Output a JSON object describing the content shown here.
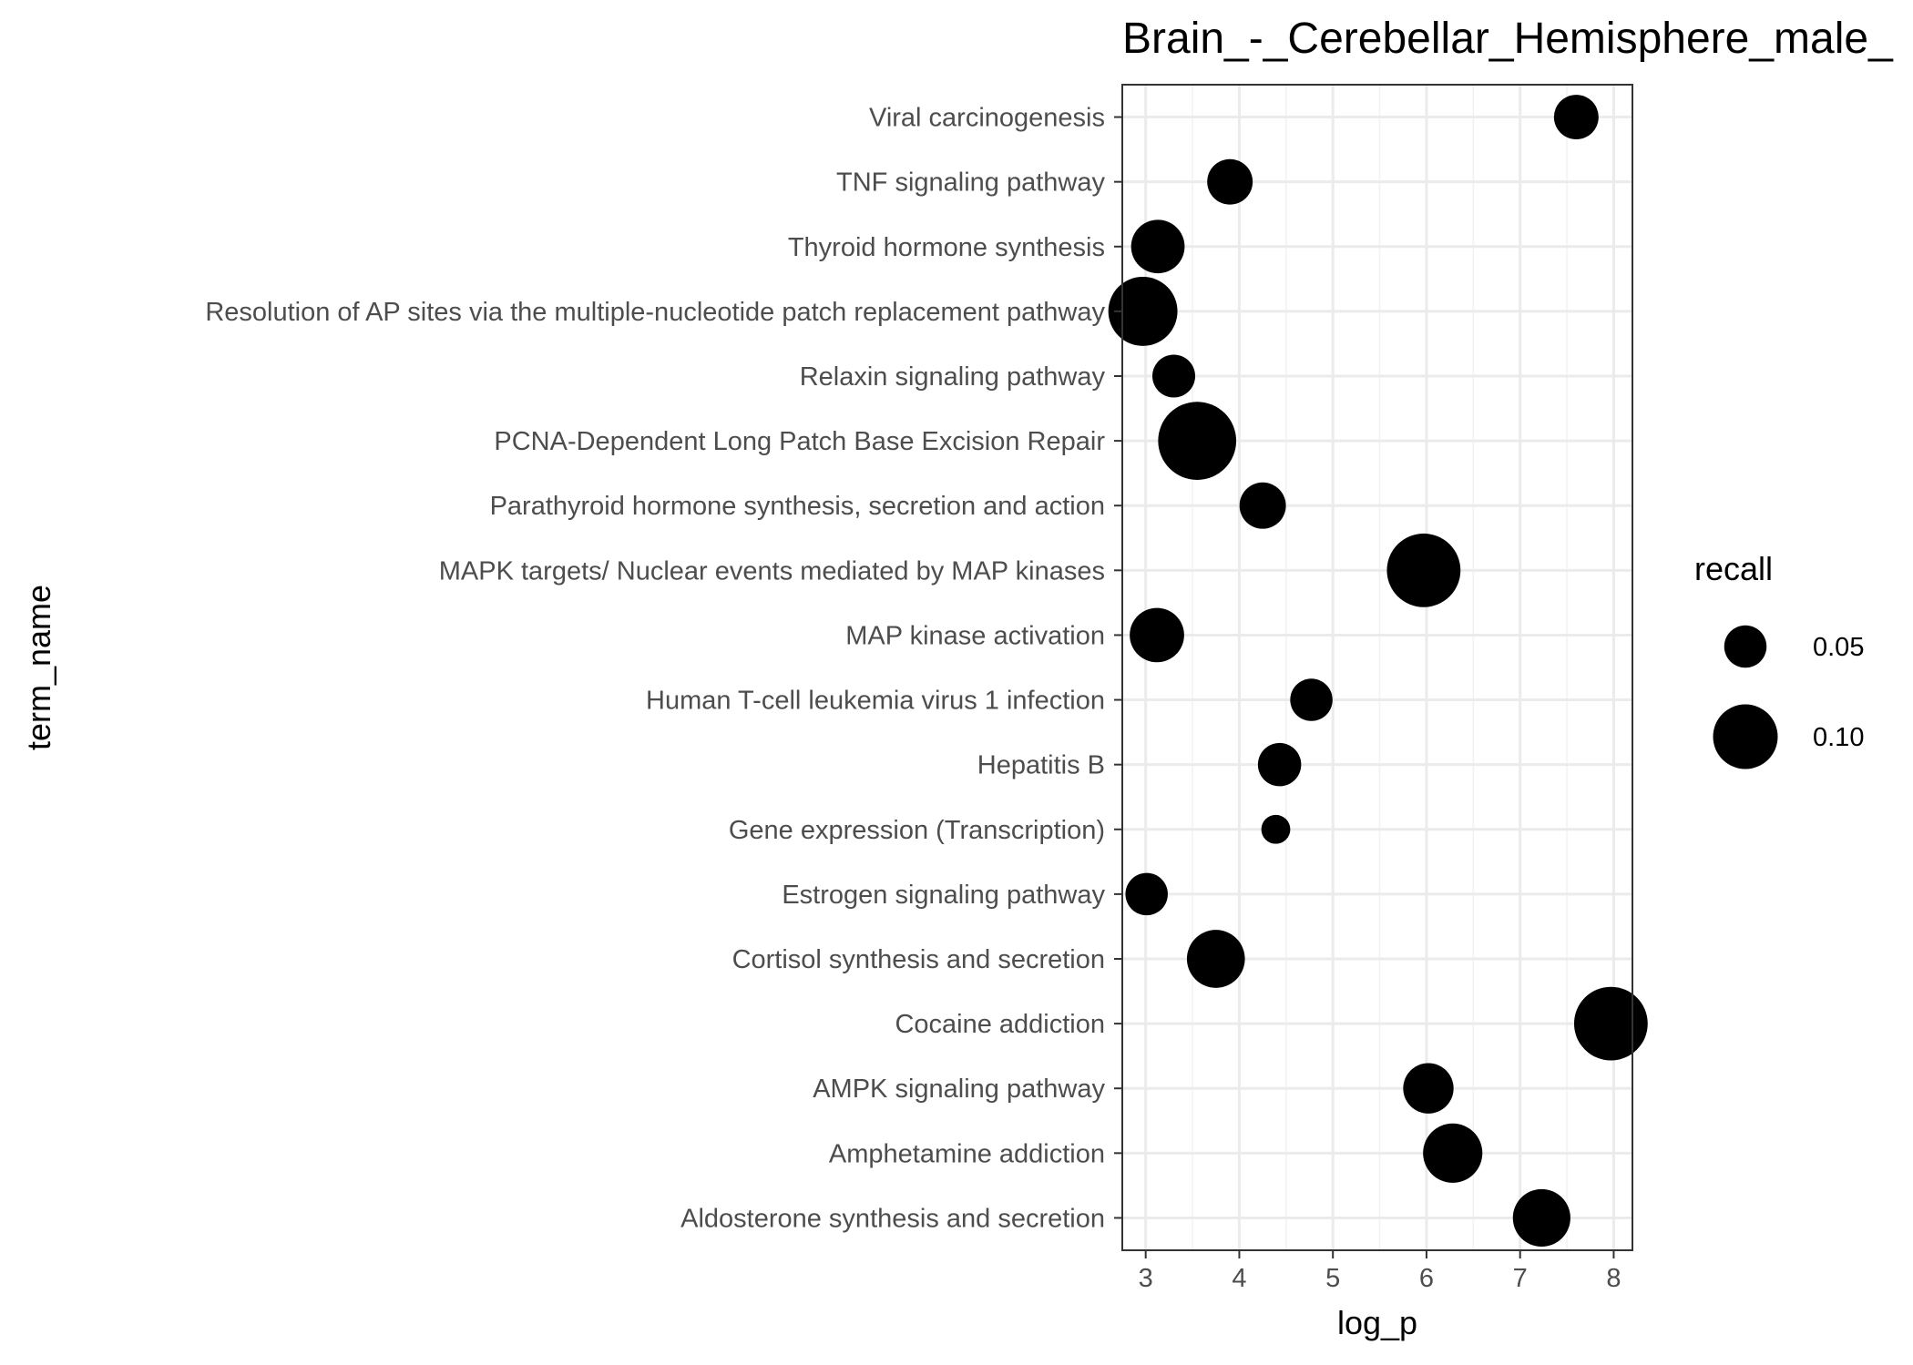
{
  "chart_data": {
    "type": "scatter",
    "title": "Brain_-_Cerebellar_Hemisphere_male_",
    "xlabel": "log_p",
    "ylabel": "term_name",
    "xlim": [
      2.75,
      8.2
    ],
    "x_ticks": [
      3,
      4,
      5,
      6,
      7,
      8
    ],
    "x_tick_labels": [
      "3",
      "4",
      "5",
      "6",
      "7",
      "8"
    ],
    "grid": true,
    "legend": {
      "title": "recall",
      "position": "right",
      "entries": [
        {
          "label": "0.05",
          "value": 0.05
        },
        {
          "label": "0.10",
          "value": 0.1
        }
      ]
    },
    "marker_color": "#000000",
    "points": [
      {
        "term": "Viral carcinogenesis",
        "log_p": 7.6,
        "recall": 0.055
      },
      {
        "term": "TNF signaling pathway",
        "log_p": 3.9,
        "recall": 0.057
      },
      {
        "term": "Thyroid hormone synthesis",
        "log_p": 3.13,
        "recall": 0.075
      },
      {
        "term": "Resolution of AP sites via the multiple-nucleotide patch replacement pathway",
        "log_p": 2.97,
        "recall": 0.11
      },
      {
        "term": "Relaxin signaling pathway",
        "log_p": 3.3,
        "recall": 0.051
      },
      {
        "term": "PCNA-Dependent Long Patch Base Excision Repair",
        "log_p": 3.55,
        "recall": 0.13
      },
      {
        "term": "Parathyroid hormone synthesis, secretion and action",
        "log_p": 4.25,
        "recall": 0.059
      },
      {
        "term": "MAPK targets/ Nuclear events mediated by MAP kinases",
        "log_p": 5.97,
        "recall": 0.12
      },
      {
        "term": "MAP kinase activation",
        "log_p": 3.12,
        "recall": 0.077
      },
      {
        "term": "Human T-cell leukemia virus 1 infection",
        "log_p": 4.77,
        "recall": 0.05
      },
      {
        "term": "Hepatitis B",
        "log_p": 4.43,
        "recall": 0.052
      },
      {
        "term": "Gene expression (Transcription)",
        "log_p": 4.39,
        "recall": 0.02
      },
      {
        "term": "Estrogen signaling pathway",
        "log_p": 3.01,
        "recall": 0.05
      },
      {
        "term": "Cortisol synthesis and secretion",
        "log_p": 3.75,
        "recall": 0.085
      },
      {
        "term": "Cocaine addiction",
        "log_p": 7.97,
        "recall": 0.12
      },
      {
        "term": "AMPK signaling pathway",
        "log_p": 6.02,
        "recall": 0.068
      },
      {
        "term": "Amphetamine addiction",
        "log_p": 6.28,
        "recall": 0.088
      },
      {
        "term": "Aldosterone synthesis and secretion",
        "log_p": 7.23,
        "recall": 0.084
      }
    ]
  }
}
